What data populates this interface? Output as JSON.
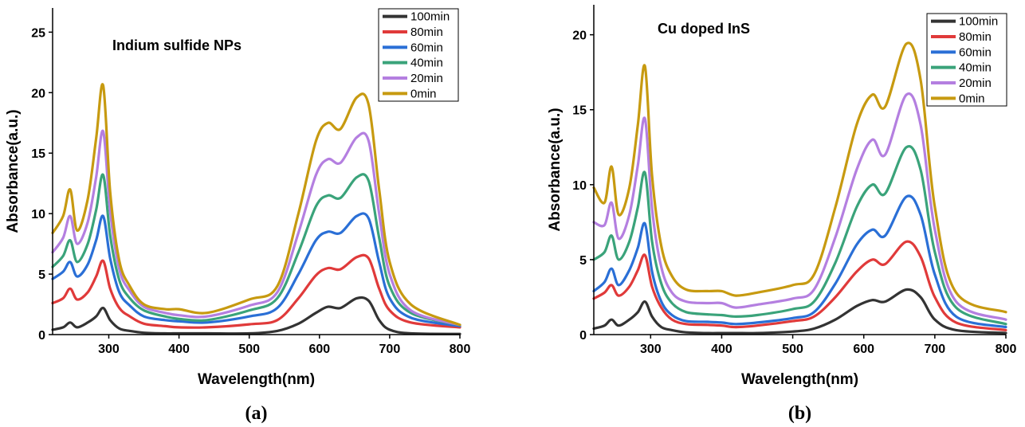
{
  "chart_data": [
    {
      "type": "line",
      "title": "Indium sulfide NPs",
      "xlabel": "Wavelength(nm)",
      "ylabel": "Absorbance(a.u.)",
      "panel_label": "(a)",
      "xlim": [
        220,
        800
      ],
      "ylim": [
        0,
        27
      ],
      "xticks": [
        300,
        400,
        500,
        600,
        700,
        800
      ],
      "yticks": [
        0,
        5,
        10,
        15,
        20,
        25
      ],
      "legend_position": "top-right",
      "x": [
        220,
        235,
        245,
        255,
        270,
        282,
        292,
        302,
        315,
        330,
        350,
        380,
        400,
        440,
        500,
        540,
        570,
        595,
        612,
        630,
        653,
        670,
        685,
        700,
        730,
        800
      ],
      "series": [
        {
          "name": "100min",
          "color": "#333333",
          "values": [
            0.4,
            0.6,
            1.0,
            0.6,
            1.0,
            1.5,
            2.2,
            1.2,
            0.5,
            0.3,
            0.15,
            0.1,
            0.1,
            0.1,
            0.1,
            0.3,
            0.9,
            1.8,
            2.3,
            2.2,
            3.0,
            2.8,
            1.2,
            0.4,
            0.1,
            0.05
          ]
        },
        {
          "name": "80min",
          "color": "#e03a3a",
          "values": [
            2.6,
            3.0,
            3.8,
            2.9,
            3.5,
            4.8,
            6.1,
            3.8,
            2.2,
            1.5,
            0.9,
            0.7,
            0.6,
            0.6,
            0.85,
            1.2,
            3.0,
            4.9,
            5.5,
            5.4,
            6.4,
            6.3,
            3.8,
            2.0,
            1.0,
            0.6
          ]
        },
        {
          "name": "60min",
          "color": "#2a6fd6",
          "values": [
            4.6,
            5.2,
            6.0,
            4.8,
            5.8,
            7.8,
            9.8,
            6.3,
            3.5,
            2.4,
            1.5,
            1.2,
            1.1,
            1.0,
            1.5,
            2.2,
            5.0,
            7.8,
            8.5,
            8.4,
            9.8,
            9.6,
            6.0,
            3.0,
            1.4,
            0.7
          ]
        },
        {
          "name": "40min",
          "color": "#3aa37a",
          "values": [
            5.6,
            6.5,
            7.8,
            6.0,
            7.5,
            10.3,
            13.2,
            8.2,
            4.5,
            3.0,
            2.0,
            1.5,
            1.3,
            1.2,
            2.0,
            3.0,
            6.8,
            10.6,
            11.5,
            11.3,
            13.0,
            12.7,
            8.0,
            4.0,
            1.8,
            0.8
          ]
        },
        {
          "name": "20min",
          "color": "#b47fe0",
          "values": [
            6.8,
            8.0,
            9.8,
            7.5,
            9.3,
            13.0,
            16.8,
            10.2,
            5.4,
            3.6,
            2.3,
            1.8,
            1.6,
            1.5,
            2.4,
            3.5,
            8.4,
            13.2,
            14.5,
            14.2,
            16.3,
            16.0,
            10.0,
            5.0,
            2.0,
            0.8
          ]
        },
        {
          "name": "0min",
          "color": "#c79a10",
          "values": [
            8.4,
            9.8,
            12.0,
            8.6,
            11.2,
            16.2,
            20.6,
            11.8,
            6.1,
            4.0,
            2.5,
            2.1,
            2.1,
            1.8,
            2.9,
            4.0,
            10.0,
            16.0,
            17.5,
            17.0,
            19.6,
            19.0,
            12.0,
            6.0,
            2.5,
            0.8
          ]
        }
      ]
    },
    {
      "type": "line",
      "title": "Cu doped InS",
      "xlabel": "Wavelength(nm)",
      "ylabel": "Absorbance(a.u.)",
      "panel_label": "(b)",
      "xlim": [
        220,
        800
      ],
      "ylim": [
        0,
        22
      ],
      "xticks": [
        300,
        400,
        500,
        600,
        700,
        800
      ],
      "yticks": [
        0,
        5,
        10,
        15,
        20
      ],
      "legend_position": "top-right",
      "x": [
        220,
        235,
        245,
        255,
        270,
        282,
        292,
        302,
        315,
        330,
        350,
        380,
        400,
        420,
        450,
        500,
        530,
        560,
        590,
        612,
        630,
        660,
        680,
        700,
        730,
        800
      ],
      "series": [
        {
          "name": "100min",
          "color": "#333333",
          "values": [
            0.4,
            0.6,
            1.0,
            0.6,
            1.0,
            1.5,
            2.2,
            1.2,
            0.5,
            0.3,
            0.15,
            0.1,
            0.1,
            0.1,
            0.1,
            0.2,
            0.4,
            1.0,
            1.9,
            2.3,
            2.2,
            3.0,
            2.5,
            1.0,
            0.3,
            0.1
          ]
        },
        {
          "name": "80min",
          "color": "#e03a3a",
          "values": [
            2.4,
            2.8,
            3.3,
            2.6,
            3.2,
            4.3,
            5.3,
            3.2,
            1.8,
            1.0,
            0.7,
            0.65,
            0.6,
            0.5,
            0.6,
            0.9,
            1.2,
            2.5,
            4.2,
            5.0,
            4.7,
            6.2,
            5.2,
            2.5,
            0.8,
            0.3
          ]
        },
        {
          "name": "60min",
          "color": "#2a6fd6",
          "values": [
            2.9,
            3.5,
            4.4,
            3.3,
            4.3,
            5.8,
            7.4,
            4.2,
            2.2,
            1.3,
            0.9,
            0.85,
            0.8,
            0.7,
            0.8,
            1.1,
            1.5,
            3.4,
            6.0,
            7.0,
            6.6,
            9.2,
            8.0,
            4.0,
            1.2,
            0.5
          ]
        },
        {
          "name": "40min",
          "color": "#3aa37a",
          "values": [
            5.0,
            5.5,
            6.6,
            5.0,
            6.2,
            8.5,
            10.8,
            6.2,
            3.4,
            2.1,
            1.5,
            1.35,
            1.3,
            1.2,
            1.3,
            1.7,
            2.2,
            4.8,
            8.5,
            10.0,
            9.4,
            12.5,
            11.0,
            5.5,
            1.8,
            0.7
          ]
        },
        {
          "name": "20min",
          "color": "#b47fe0",
          "values": [
            7.5,
            7.3,
            8.8,
            6.4,
            8.0,
            11.3,
            14.4,
            8.4,
            4.5,
            2.8,
            2.2,
            2.1,
            2.1,
            1.8,
            2.0,
            2.4,
            3.0,
            6.5,
            11.0,
            13.0,
            12.0,
            16.0,
            14.0,
            7.0,
            2.2,
            1.0
          ]
        },
        {
          "name": "0min",
          "color": "#c79a10",
          "values": [
            9.8,
            8.8,
            11.2,
            8.0,
            9.8,
            14.0,
            17.9,
            10.6,
            5.9,
            3.9,
            3.0,
            2.9,
            2.9,
            2.6,
            2.8,
            3.3,
            4.0,
            8.5,
            14.0,
            16.0,
            15.2,
            19.4,
            17.0,
            8.5,
            2.8,
            1.5
          ]
        }
      ]
    }
  ]
}
